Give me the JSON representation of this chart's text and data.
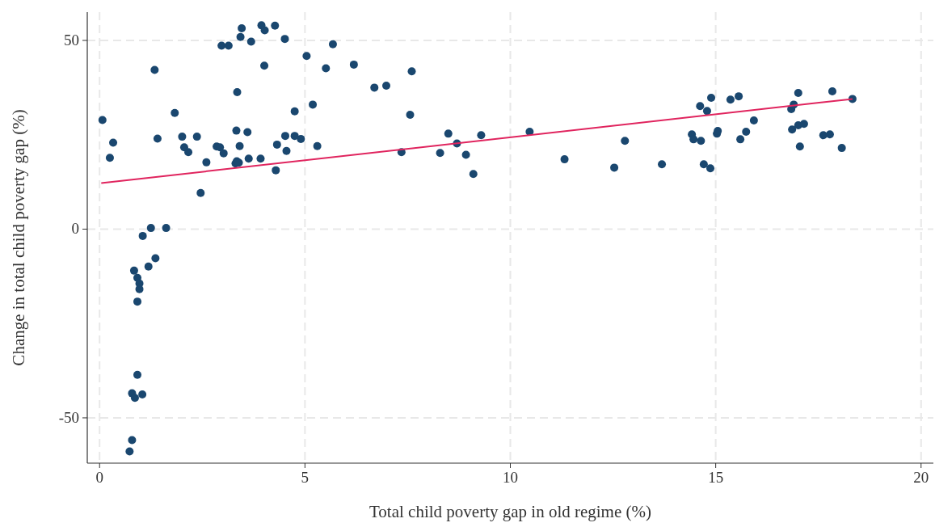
{
  "chart_data": {
    "type": "scatter",
    "xlabel": "Total child poverty gap in old regime (%)",
    "ylabel": "Change in total child poverty gap (%)",
    "xlim": [
      -0.3,
      20.3
    ],
    "ylim": [
      -62,
      57.5
    ],
    "xticks": [
      0,
      5,
      10,
      15,
      20
    ],
    "yticks": [
      50,
      0,
      -50
    ],
    "grid": true,
    "marker": "circle",
    "series": [
      {
        "color": "#1a476f",
        "x": [
          0.07,
          0.25,
          0.33,
          1.34,
          1.41,
          1.83,
          2.01,
          2.06,
          2.16,
          2.37,
          2.46,
          2.6,
          2.85,
          2.93,
          3.02,
          2.97,
          3.14,
          3.31,
          3.39,
          3.34,
          3.33,
          3.35,
          3.41,
          3.43,
          3.46,
          3.6,
          3.63,
          3.69,
          3.92,
          3.94,
          4.02,
          4.01,
          4.27,
          4.32,
          4.29,
          4.51,
          4.52,
          4.55,
          4.75,
          4.75,
          4.9,
          5.04,
          5.19,
          5.3,
          5.51,
          5.68,
          6.19,
          6.69,
          6.98,
          7.35,
          7.56,
          7.6,
          8.29,
          8.49,
          8.7,
          8.92,
          9.1,
          9.29,
          10.47,
          11.32,
          12.53,
          12.79,
          13.69,
          14.42,
          14.46,
          14.64,
          14.62,
          14.79,
          14.89,
          14.71,
          14.87,
          15.03,
          15.05,
          15.36,
          15.56,
          15.6,
          15.74,
          15.93,
          16.84,
          16.9,
          17.01,
          16.86,
          17.01,
          17.15,
          17.05,
          17.62,
          17.78,
          17.84,
          18.07,
          18.33,
          1.25,
          1.62,
          1.05,
          1.36,
          1.19,
          0.84,
          0.92,
          0.97,
          0.97,
          0.92,
          0.92,
          0.79,
          0.86,
          1.04,
          0.79,
          0.73
        ],
        "values": [
          28.9,
          18.9,
          22.9,
          42.2,
          24.0,
          30.8,
          24.5,
          21.7,
          20.4,
          24.5,
          9.6,
          17.7,
          21.9,
          21.7,
          20.1,
          48.6,
          48.6,
          17.4,
          17.6,
          18.0,
          26.1,
          36.3,
          22.0,
          50.9,
          53.2,
          25.7,
          18.7,
          49.7,
          18.7,
          54.0,
          52.7,
          43.3,
          53.9,
          22.4,
          15.6,
          50.4,
          24.7,
          20.7,
          31.2,
          24.7,
          23.9,
          45.9,
          33.0,
          22.0,
          42.6,
          49.0,
          43.6,
          37.5,
          38.0,
          20.4,
          30.3,
          41.8,
          20.2,
          25.3,
          22.7,
          19.7,
          14.6,
          24.9,
          25.8,
          18.5,
          16.3,
          23.4,
          17.2,
          25.1,
          23.8,
          23.4,
          32.6,
          31.3,
          34.8,
          17.2,
          16.1,
          25.3,
          26.0,
          34.3,
          35.2,
          23.8,
          25.8,
          28.8,
          31.8,
          33.0,
          36.1,
          26.4,
          27.5,
          27.9,
          21.9,
          24.9,
          25.1,
          36.5,
          21.5,
          34.5,
          0.3,
          0.3,
          -1.8,
          -7.7,
          -9.9,
          -11.0,
          -12.9,
          -14.4,
          -15.9,
          -19.2,
          -38.6,
          -43.5,
          -44.7,
          -43.8,
          -55.9,
          -58.9
        ]
      },
      {
        "type": "line",
        "color": "#e0245e",
        "marker": "none",
        "line_style": "solid",
        "x": [
          0.04,
          18.33
        ],
        "values": [
          12.2,
          34.5
        ]
      }
    ]
  }
}
